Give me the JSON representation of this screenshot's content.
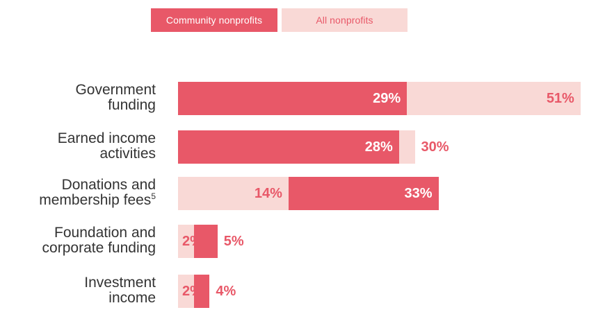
{
  "legend": {
    "community_label": "Community nonprofits",
    "all_label": "All nonprofits"
  },
  "colors": {
    "community": "#e85868",
    "all": "#f9d9d6"
  },
  "chart_data": {
    "type": "bar",
    "orientation": "horizontal",
    "stacking": "overlaid",
    "categories": [
      "Government funding",
      "Earned income activities",
      "Donations and membership fees",
      "Foundation and corporate funding",
      "Investment income"
    ],
    "category_superscripts": [
      "",
      "",
      "5",
      "",
      ""
    ],
    "series": [
      {
        "name": "Community nonprofits",
        "values": [
          29,
          28,
          33,
          5,
          4
        ]
      },
      {
        "name": "All nonprofits",
        "values": [
          51,
          30,
          14,
          2,
          2
        ]
      }
    ],
    "value_suffix": "%",
    "legend_position": "top",
    "grid": false
  }
}
